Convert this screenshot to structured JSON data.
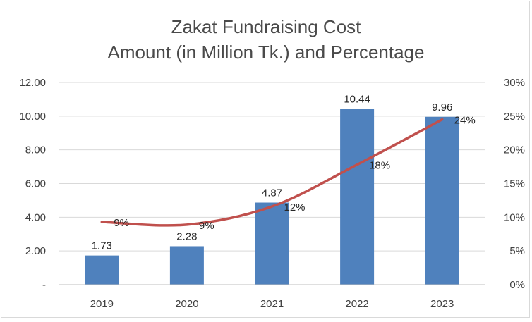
{
  "chart_data": {
    "type": "bar",
    "title_line1": "Zakat Fundraising Cost",
    "title_line2": "Amount (in Million Tk.) and Percentage",
    "categories": [
      "2019",
      "2020",
      "2021",
      "2022",
      "2023"
    ],
    "series": [
      {
        "name": "Amount (in Million Tk.)",
        "type": "bar",
        "axis": "left",
        "values": [
          1.73,
          2.28,
          4.87,
          10.44,
          9.96
        ],
        "labels": [
          "1.73",
          "2.28",
          "4.87",
          "10.44",
          "9.96"
        ],
        "color": "#4f81bd"
      },
      {
        "name": "Percentage",
        "type": "line",
        "axis": "right",
        "values": [
          9.3,
          8.9,
          11.6,
          17.8,
          24.5
        ],
        "labels": [
          "9%",
          "9%",
          "12%",
          "18%",
          "24%"
        ],
        "color": "#c0504d"
      }
    ],
    "y_left": {
      "ylim": [
        0,
        12
      ],
      "ticks": [
        0,
        2,
        4,
        6,
        8,
        10,
        12
      ],
      "tick_labels": [
        "-",
        "2.00",
        "4.00",
        "6.00",
        "8.00",
        "10.00",
        "12.00"
      ]
    },
    "y_right": {
      "ylim": [
        0,
        30
      ],
      "ticks": [
        0,
        5,
        10,
        15,
        20,
        25,
        30
      ],
      "tick_labels": [
        "0%",
        "5%",
        "10%",
        "15%",
        "20%",
        "25%",
        "30%"
      ]
    },
    "grid": true,
    "legend": "none",
    "gridline_color": "#d9d9d9"
  }
}
